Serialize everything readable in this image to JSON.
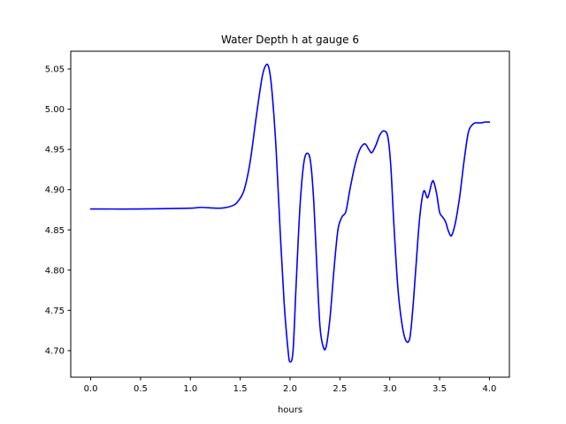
{
  "chart_data": {
    "type": "line",
    "title": "Water Depth h at gauge 6",
    "xlabel": "hours",
    "ylabel": "",
    "xlim": [
      -0.2,
      4.2
    ],
    "ylim": [
      4.667,
      5.072
    ],
    "grid": false,
    "legend": "none",
    "x_ticks": [
      0.0,
      0.5,
      1.0,
      1.5,
      2.0,
      2.5,
      3.0,
      3.5,
      4.0
    ],
    "x_tick_labels": [
      "0.0",
      "0.5",
      "1.0",
      "1.5",
      "2.0",
      "2.5",
      "3.0",
      "3.5",
      "4.0"
    ],
    "y_ticks": [
      4.7,
      4.75,
      4.8,
      4.85,
      4.9,
      4.95,
      5.0,
      5.05
    ],
    "y_tick_labels": [
      "4.70",
      "4.75",
      "4.80",
      "4.85",
      "4.90",
      "4.95",
      "5.00",
      "5.05"
    ],
    "series": [
      {
        "color": "#0000ff",
        "x": [
          0.0,
          0.5,
          1.0,
          1.1,
          1.3,
          1.42,
          1.48,
          1.54,
          1.6,
          1.66,
          1.72,
          1.76,
          1.79,
          1.82,
          1.86,
          1.9,
          1.94,
          1.98,
          2.0,
          2.03,
          2.06,
          2.1,
          2.14,
          2.18,
          2.21,
          2.24,
          2.27,
          2.3,
          2.33,
          2.36,
          2.4,
          2.44,
          2.48,
          2.52,
          2.56,
          2.6,
          2.65,
          2.7,
          2.75,
          2.79,
          2.82,
          2.86,
          2.9,
          2.94,
          2.98,
          3.01,
          3.04,
          3.08,
          3.12,
          3.16,
          3.2,
          3.23,
          3.26,
          3.3,
          3.34,
          3.38,
          3.42,
          3.44,
          3.47,
          3.5,
          3.53,
          3.56,
          3.59,
          3.62,
          3.66,
          3.7,
          3.72,
          3.75,
          3.79,
          3.84,
          3.88,
          3.92,
          3.95,
          3.98,
          4.0
        ],
        "y": [
          4.876,
          4.876,
          4.877,
          4.878,
          4.877,
          4.88,
          4.886,
          4.9,
          4.935,
          4.99,
          5.04,
          5.055,
          5.05,
          5.02,
          4.95,
          4.85,
          4.76,
          4.7,
          4.686,
          4.7,
          4.78,
          4.88,
          4.935,
          4.945,
          4.93,
          4.88,
          4.8,
          4.73,
          4.706,
          4.704,
          4.74,
          4.8,
          4.85,
          4.866,
          4.873,
          4.9,
          4.93,
          4.95,
          4.957,
          4.95,
          4.946,
          4.955,
          4.968,
          4.973,
          4.966,
          4.93,
          4.86,
          4.78,
          4.735,
          4.713,
          4.715,
          4.75,
          4.8,
          4.865,
          4.898,
          4.89,
          4.908,
          4.91,
          4.895,
          4.872,
          4.866,
          4.86,
          4.848,
          4.843,
          4.86,
          4.89,
          4.91,
          4.94,
          4.972,
          4.982,
          4.983,
          4.983,
          4.984,
          4.984,
          4.984
        ]
      }
    ]
  }
}
